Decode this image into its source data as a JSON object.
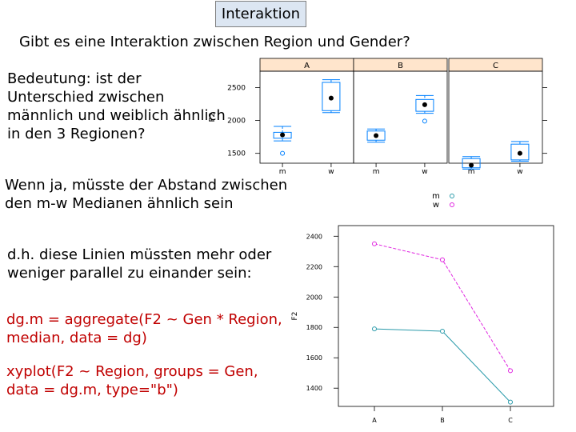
{
  "slide": {
    "title": "Interaktion",
    "question": "Gibt es eine Interaktion zwischen Region und Gender?",
    "text_bedeutung": [
      "Bedeutung: ist der",
      "Unterschied zwischen",
      "männlich und weiblich ähnlich",
      "in den 3 Regionen?"
    ],
    "text_wenn": [
      "Wenn ja, müsste der Abstand zwischen",
      "den m-w Medianen ähnlich sein"
    ],
    "text_dh": [
      "d.h. diese Linien müssten mehr oder",
      "weniger parallel zu einander sein:"
    ],
    "code_aggregate": [
      "dg.m = aggregate(F2 ~ Gen * Region,",
      "median, data = dg)"
    ],
    "code_xyplot": [
      "xyplot(F2 ~ Region, groups = Gen,",
      "data = dg.m, type=\"b\")"
    ]
  },
  "colors": {
    "title_box_bg": "#dce6f2",
    "code_red": "#c00000",
    "strip_bg": "#ffe5cc",
    "blue": "#0080ff",
    "magenta": "#e026e0",
    "teal": "#2a9aaa"
  },
  "chart_data": [
    {
      "type": "boxplot",
      "panels": [
        "A",
        "B",
        "C"
      ],
      "categories": [
        "m",
        "w"
      ],
      "ylabel": "F2",
      "yticks": [
        1500,
        2000,
        2500
      ],
      "ylim": [
        1350,
        2750
      ],
      "boxes": {
        "A": {
          "m": {
            "q1": 1730,
            "median": 1780,
            "q3": 1820,
            "whisker_low": 1690,
            "whisker_high": 1910,
            "outliers": [
              1500
            ]
          },
          "w": {
            "q1": 2150,
            "median": 2340,
            "q3": 2580,
            "whisker_low": 2120,
            "whisker_high": 2620,
            "outliers": []
          }
        },
        "B": {
          "m": {
            "q1": 1700,
            "median": 1770,
            "q3": 1840,
            "whisker_low": 1670,
            "whisker_high": 1870,
            "outliers": []
          },
          "w": {
            "q1": 2140,
            "median": 2240,
            "q3": 2320,
            "whisker_low": 2110,
            "whisker_high": 2380,
            "outliers": [
              1990
            ]
          }
        },
        "C": {
          "m": {
            "q1": 1280,
            "median": 1320,
            "q3": 1420,
            "whisker_low": 1260,
            "whisker_high": 1450,
            "outliers": []
          },
          "w": {
            "q1": 1400,
            "median": 1500,
            "q3": 1640,
            "whisker_low": 1380,
            "whisker_high": 1680,
            "outliers": []
          }
        }
      }
    },
    {
      "type": "line",
      "x": [
        "A",
        "B",
        "C"
      ],
      "ylabel": "F2",
      "yticks": [
        1400,
        1600,
        1800,
        2000,
        2200,
        2400
      ],
      "ylim": [
        1280,
        2470
      ],
      "legend": [
        "m",
        "w"
      ],
      "legend_placement": "top",
      "series": [
        {
          "name": "m",
          "values": [
            1790,
            1775,
            1308
          ]
        },
        {
          "name": "w",
          "values": [
            2350,
            2245,
            1515
          ]
        }
      ]
    }
  ]
}
